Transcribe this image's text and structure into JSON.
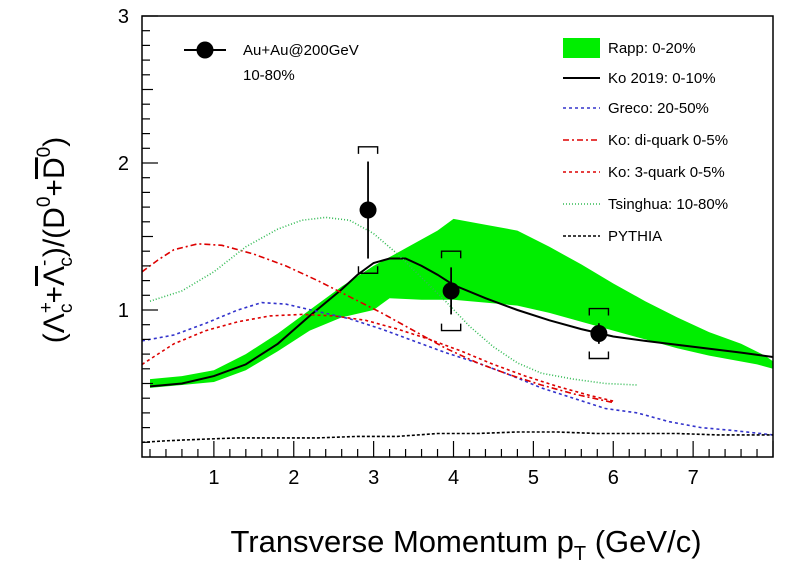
{
  "chart_data": {
    "type": "line",
    "title": "",
    "xlabel": "Transverse Momentum p",
    "xlabel_sub": "T",
    "xlabel_unit": "(GeV/c)",
    "ylabel_parts": {
      "open": "(",
      "lam1": "Λ",
      "lam1_sup": "+",
      "lam1_sub": "c",
      "plus1": "+",
      "lam2": "Λ",
      "lam2_sup": "-",
      "lam2_sub": "c",
      "close_div": ")/(",
      "d1": "D",
      "d1_sup": "0",
      "plus2": "+",
      "d2": "D",
      "d2_sup": "0",
      "close": ")"
    },
    "xlim": [
      0.1,
      8.0
    ],
    "ylim": [
      0.0,
      3.0
    ],
    "xticks": [
      1,
      2,
      3,
      4,
      5,
      6,
      7
    ],
    "yticks": [
      1,
      2,
      3
    ],
    "legend_position": "top-right",
    "data_legend": {
      "label": "Au+Au@200GeV",
      "annotation": "10-80%"
    },
    "data_points": [
      {
        "x": 2.93,
        "y": 1.68,
        "stat_err": 0.33,
        "sys_err": 0.43,
        "sys_halfwidth": 0.12
      },
      {
        "x": 3.97,
        "y": 1.13,
        "stat_err": 0.16,
        "sys_err": 0.27,
        "sys_halfwidth": 0.12
      },
      {
        "x": 5.82,
        "y": 0.84,
        "stat_err": 0.07,
        "sys_err": 0.17,
        "sys_halfwidth": 0.12
      }
    ],
    "band": {
      "name": "Rapp: 0-20%",
      "color": "#00ee00",
      "upper": [
        [
          0.2,
          0.53
        ],
        [
          0.6,
          0.55
        ],
        [
          1.0,
          0.59
        ],
        [
          1.4,
          0.7
        ],
        [
          1.8,
          0.84
        ],
        [
          2.2,
          1.0
        ],
        [
          2.6,
          1.16
        ],
        [
          3.0,
          1.3
        ],
        [
          3.4,
          1.42
        ],
        [
          3.8,
          1.54
        ],
        [
          4.0,
          1.62
        ],
        [
          4.4,
          1.58
        ],
        [
          4.8,
          1.54
        ],
        [
          5.2,
          1.43
        ],
        [
          5.6,
          1.31
        ],
        [
          6.0,
          1.18
        ],
        [
          6.4,
          1.06
        ],
        [
          6.8,
          0.95
        ],
        [
          7.2,
          0.85
        ],
        [
          7.6,
          0.77
        ],
        [
          7.9,
          0.69
        ],
        [
          8.0,
          0.65
        ]
      ],
      "lower": [
        [
          8.0,
          0.6
        ],
        [
          7.8,
          0.63
        ],
        [
          7.2,
          0.69
        ],
        [
          6.8,
          0.74
        ],
        [
          6.4,
          0.8
        ],
        [
          6.0,
          0.86
        ],
        [
          5.6,
          0.92
        ],
        [
          5.2,
          0.98
        ],
        [
          4.8,
          1.03
        ],
        [
          4.4,
          1.05
        ],
        [
          4.0,
          1.07
        ],
        [
          3.6,
          1.07
        ],
        [
          3.2,
          1.08
        ],
        [
          3.0,
          1.0
        ],
        [
          2.6,
          0.95
        ],
        [
          2.2,
          0.86
        ],
        [
          1.8,
          0.72
        ],
        [
          1.4,
          0.59
        ],
        [
          1.0,
          0.51
        ],
        [
          0.6,
          0.49
        ],
        [
          0.2,
          0.47
        ]
      ]
    },
    "series": [
      {
        "name": "Ko 2019: 0-10%",
        "color": "#000000",
        "dash": "solid",
        "points": [
          [
            0.2,
            0.48
          ],
          [
            0.6,
            0.5
          ],
          [
            1.0,
            0.55
          ],
          [
            1.4,
            0.63
          ],
          [
            1.8,
            0.77
          ],
          [
            2.2,
            0.96
          ],
          [
            2.6,
            1.14
          ],
          [
            2.8,
            1.24
          ],
          [
            3.0,
            1.32
          ],
          [
            3.2,
            1.35
          ],
          [
            3.4,
            1.35
          ],
          [
            3.6,
            1.3
          ],
          [
            3.8,
            1.24
          ],
          [
            4.0,
            1.17
          ],
          [
            4.4,
            1.08
          ],
          [
            4.8,
            1.0
          ],
          [
            5.2,
            0.93
          ],
          [
            5.6,
            0.87
          ],
          [
            6.0,
            0.82
          ],
          [
            6.4,
            0.79
          ],
          [
            7.0,
            0.75
          ],
          [
            7.6,
            0.71
          ],
          [
            8.0,
            0.68
          ]
        ]
      },
      {
        "name": "Greco: 20-50%",
        "color": "#3333cc",
        "dash": "3,3",
        "points": [
          [
            0.1,
            0.79
          ],
          [
            0.5,
            0.83
          ],
          [
            0.9,
            0.91
          ],
          [
            1.3,
            1.0
          ],
          [
            1.6,
            1.05
          ],
          [
            1.9,
            1.04
          ],
          [
            2.3,
            0.99
          ],
          [
            2.7,
            0.94
          ],
          [
            3.1,
            0.87
          ],
          [
            3.5,
            0.79
          ],
          [
            3.9,
            0.71
          ],
          [
            4.3,
            0.64
          ],
          [
            4.7,
            0.56
          ],
          [
            5.1,
            0.47
          ],
          [
            5.5,
            0.4
          ],
          [
            5.9,
            0.33
          ],
          [
            6.3,
            0.3
          ],
          [
            6.7,
            0.24
          ],
          [
            7.1,
            0.2
          ],
          [
            7.5,
            0.18
          ],
          [
            8.0,
            0.15
          ]
        ]
      },
      {
        "name": "Ko: di-quark 0-5%",
        "color": "#dd0000",
        "dash": "6,3,2,3",
        "points": [
          [
            0.1,
            1.26
          ],
          [
            0.3,
            1.34
          ],
          [
            0.5,
            1.41
          ],
          [
            0.8,
            1.45
          ],
          [
            1.1,
            1.44
          ],
          [
            1.5,
            1.38
          ],
          [
            1.9,
            1.3
          ],
          [
            2.3,
            1.2
          ],
          [
            2.7,
            1.09
          ],
          [
            3.1,
            0.98
          ],
          [
            3.5,
            0.86
          ],
          [
            3.9,
            0.74
          ],
          [
            4.3,
            0.64
          ],
          [
            4.7,
            0.56
          ],
          [
            5.1,
            0.49
          ],
          [
            5.5,
            0.43
          ],
          [
            6.0,
            0.37
          ]
        ]
      },
      {
        "name": "Ko: 3-quark 0-5%",
        "color": "#dd0000",
        "dash": "3,3",
        "points": [
          [
            0.1,
            0.63
          ],
          [
            0.5,
            0.77
          ],
          [
            0.9,
            0.86
          ],
          [
            1.3,
            0.92
          ],
          [
            1.7,
            0.96
          ],
          [
            2.1,
            0.97
          ],
          [
            2.5,
            0.96
          ],
          [
            2.9,
            0.93
          ],
          [
            3.3,
            0.87
          ],
          [
            3.7,
            0.8
          ],
          [
            4.1,
            0.72
          ],
          [
            4.5,
            0.63
          ],
          [
            4.9,
            0.55
          ],
          [
            5.3,
            0.48
          ],
          [
            5.7,
            0.42
          ],
          [
            6.0,
            0.38
          ]
        ]
      },
      {
        "name": "Tsinghua: 10-80%",
        "color": "#33bb55",
        "dash": "1,2",
        "points": [
          [
            0.2,
            1.06
          ],
          [
            0.6,
            1.13
          ],
          [
            1.0,
            1.26
          ],
          [
            1.4,
            1.43
          ],
          [
            1.8,
            1.55
          ],
          [
            2.1,
            1.61
          ],
          [
            2.4,
            1.63
          ],
          [
            2.7,
            1.61
          ],
          [
            3.0,
            1.52
          ],
          [
            3.3,
            1.38
          ],
          [
            3.6,
            1.22
          ],
          [
            3.9,
            1.06
          ],
          [
            4.2,
            0.89
          ],
          [
            4.5,
            0.75
          ],
          [
            4.8,
            0.64
          ],
          [
            5.1,
            0.57
          ],
          [
            5.5,
            0.53
          ],
          [
            5.9,
            0.5
          ],
          [
            6.3,
            0.49
          ]
        ]
      },
      {
        "name": "PYTHIA",
        "color": "#000000",
        "dash": "3,2",
        "points": [
          [
            0.1,
            0.1
          ],
          [
            0.4,
            0.11
          ],
          [
            0.8,
            0.12
          ],
          [
            1.3,
            0.13
          ],
          [
            1.8,
            0.13
          ],
          [
            2.3,
            0.13
          ],
          [
            2.8,
            0.14
          ],
          [
            3.3,
            0.14
          ],
          [
            3.8,
            0.16
          ],
          [
            4.3,
            0.16
          ],
          [
            4.8,
            0.17
          ],
          [
            5.3,
            0.17
          ],
          [
            5.8,
            0.16
          ],
          [
            6.3,
            0.16
          ],
          [
            6.8,
            0.16
          ],
          [
            7.3,
            0.15
          ],
          [
            8.0,
            0.15
          ]
        ]
      }
    ]
  }
}
